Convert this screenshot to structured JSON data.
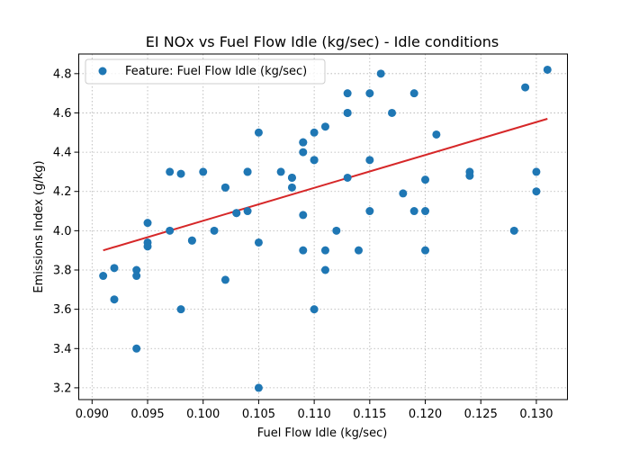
{
  "chart_data": {
    "type": "scatter",
    "title": "EI NOx vs Fuel Flow Idle (kg/sec) - Idle conditions",
    "xlabel": "Fuel Flow Idle (kg/sec)",
    "ylabel": "Emissions Index (g/kg)",
    "xlim": [
      0.0888,
      0.1328
    ],
    "ylim": [
      3.14,
      4.9
    ],
    "x_ticks": [
      0.09,
      0.095,
      0.1,
      0.105,
      0.11,
      0.115,
      0.12,
      0.125,
      0.13
    ],
    "x_tick_labels": [
      "0.090",
      "0.095",
      "0.100",
      "0.105",
      "0.110",
      "0.115",
      "0.120",
      "0.125",
      "0.130"
    ],
    "y_ticks": [
      3.2,
      3.4,
      3.6,
      3.8,
      4.0,
      4.2,
      4.4,
      4.6,
      4.8
    ],
    "y_tick_labels": [
      "3.2",
      "3.4",
      "3.6",
      "3.8",
      "4.0",
      "4.2",
      "4.4",
      "4.6",
      "4.8"
    ],
    "grid": true,
    "legend_position": "top-left",
    "series": [
      {
        "name": "Feature: Fuel Flow Idle (kg/sec)",
        "color": "#1f77b4",
        "points": [
          [
            0.091,
            3.77
          ],
          [
            0.092,
            3.81
          ],
          [
            0.092,
            3.65
          ],
          [
            0.094,
            3.8
          ],
          [
            0.094,
            3.77
          ],
          [
            0.094,
            3.4
          ],
          [
            0.095,
            4.04
          ],
          [
            0.095,
            3.94
          ],
          [
            0.095,
            3.92
          ],
          [
            0.097,
            4.3
          ],
          [
            0.097,
            4.0
          ],
          [
            0.098,
            4.29
          ],
          [
            0.098,
            3.6
          ],
          [
            0.099,
            3.95
          ],
          [
            0.099,
            3.95
          ],
          [
            0.1,
            4.3
          ],
          [
            0.101,
            4.0
          ],
          [
            0.102,
            4.22
          ],
          [
            0.102,
            4.22
          ],
          [
            0.102,
            3.75
          ],
          [
            0.103,
            4.09
          ],
          [
            0.103,
            4.09
          ],
          [
            0.104,
            4.3
          ],
          [
            0.104,
            4.3
          ],
          [
            0.104,
            4.1
          ],
          [
            0.105,
            4.5
          ],
          [
            0.105,
            3.94
          ],
          [
            0.105,
            3.2
          ],
          [
            0.107,
            4.3
          ],
          [
            0.108,
            4.27
          ],
          [
            0.108,
            4.27
          ],
          [
            0.108,
            4.22
          ],
          [
            0.109,
            4.45
          ],
          [
            0.109,
            4.45
          ],
          [
            0.109,
            4.4
          ],
          [
            0.109,
            4.08
          ],
          [
            0.109,
            3.9
          ],
          [
            0.11,
            4.5
          ],
          [
            0.11,
            4.36
          ],
          [
            0.11,
            4.36
          ],
          [
            0.11,
            3.6
          ],
          [
            0.111,
            4.53
          ],
          [
            0.111,
            3.9
          ],
          [
            0.111,
            3.8
          ],
          [
            0.112,
            4.0
          ],
          [
            0.113,
            4.7
          ],
          [
            0.113,
            4.6
          ],
          [
            0.113,
            4.6
          ],
          [
            0.113,
            4.27
          ],
          [
            0.114,
            3.9
          ],
          [
            0.115,
            4.7
          ],
          [
            0.115,
            4.36
          ],
          [
            0.115,
            4.1
          ],
          [
            0.116,
            4.8
          ],
          [
            0.117,
            4.6
          ],
          [
            0.118,
            4.19
          ],
          [
            0.119,
            4.7
          ],
          [
            0.119,
            4.1
          ],
          [
            0.12,
            4.26
          ],
          [
            0.12,
            4.1
          ],
          [
            0.12,
            3.9
          ],
          [
            0.121,
            4.49
          ],
          [
            0.124,
            4.3
          ],
          [
            0.124,
            4.28
          ],
          [
            0.128,
            4.0
          ],
          [
            0.129,
            4.73
          ],
          [
            0.13,
            4.3
          ],
          [
            0.13,
            4.2
          ],
          [
            0.131,
            4.82
          ]
        ]
      }
    ],
    "trend_line": {
      "color": "#d62728",
      "x": [
        0.091,
        0.131
      ],
      "y": [
        3.9,
        4.57
      ]
    }
  }
}
